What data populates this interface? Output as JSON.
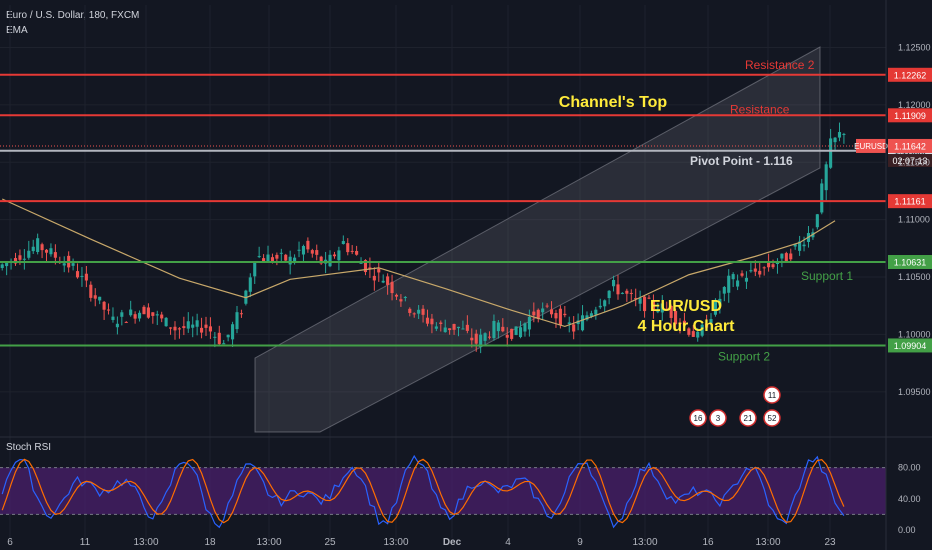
{
  "header": {
    "symbol": "Euro / U.S. Dollar, 180, FXCM",
    "indicator": "EMA"
  },
  "colors": {
    "background": "#131722",
    "up": "#26a69a",
    "down": "#ef5350",
    "resistance": "#e53935",
    "support": "#43a047",
    "pivot": "#b2b5be",
    "ema": "#c8a86a",
    "channel": "#9598a1",
    "annotation_yellow": "#ffeb3b",
    "rsi_band": "#4a1f6b"
  },
  "chart_data": {
    "type": "line",
    "title": "EUR/USD 4 Hour Chart",
    "x_tick_labels": [
      "6",
      "11",
      "13:00",
      "18",
      "13:00",
      "25",
      "13:00",
      "Dec",
      "4",
      "9",
      "13:00",
      "16",
      "13:00",
      "23"
    ],
    "y_tick_labels": [
      "1.12500",
      "1.12000",
      "1.11500",
      "1.11000",
      "1.10500",
      "1.10000",
      "1.09500"
    ],
    "ylim": [
      1.0915,
      1.1287
    ],
    "price_path": [
      [
        0,
        1.1058
      ],
      [
        9,
        1.1078
      ],
      [
        17,
        1.1058
      ],
      [
        26,
        1.1012
      ],
      [
        33,
        1.1022
      ],
      [
        40,
        1.1005
      ],
      [
        47,
        1.1007
      ],
      [
        51,
        1.0992
      ],
      [
        55,
        1.1022
      ],
      [
        58,
        1.1068
      ],
      [
        66,
        1.1065
      ],
      [
        69,
        1.1076
      ],
      [
        74,
        1.106
      ],
      [
        78,
        1.108
      ],
      [
        84,
        1.1055
      ],
      [
        87,
        1.1049
      ],
      [
        93,
        1.1023
      ],
      [
        99,
        1.1007
      ],
      [
        104,
        1.1006
      ],
      [
        108,
        1.0993
      ],
      [
        112,
        1.1006
      ],
      [
        117,
        1.1001
      ],
      [
        121,
        1.1019
      ],
      [
        125,
        1.102
      ],
      [
        130,
        1.1005
      ],
      [
        139,
        1.1042
      ],
      [
        144,
        1.1028
      ],
      [
        151,
        1.1022
      ],
      [
        158,
        1.0997
      ]
    ],
    "ema_path": [
      [
        0,
        1.1118
      ],
      [
        20,
        1.1083
      ],
      [
        40,
        1.1049
      ],
      [
        55,
        1.1032
      ],
      [
        65,
        1.1048
      ],
      [
        85,
        1.1058
      ],
      [
        100,
        1.104
      ],
      [
        115,
        1.1021
      ],
      [
        127,
        1.1007
      ],
      [
        140,
        1.1025
      ],
      [
        155,
        1.1052
      ],
      [
        170,
        1.1068
      ],
      [
        180,
        1.108
      ],
      [
        188,
        1.1099
      ]
    ],
    "levels": [
      {
        "name": "Resistance 2",
        "value": 1.12262,
        "label": "1.12262",
        "color": "#e53935"
      },
      {
        "name": "Resistance",
        "value": 1.11909,
        "label": "1.11909",
        "color": "#e53935"
      },
      {
        "name": "Pivot Point - 1.116",
        "value": 1.116,
        "label": "1.11600",
        "color": "#b2b5be"
      },
      {
        "name": "",
        "value": 1.11161,
        "label": "1.11161",
        "color": "#e53935"
      },
      {
        "name": "Support 1",
        "value": 1.10631,
        "label": "1.10631",
        "color": "#43a047"
      },
      {
        "name": "Support 2",
        "value": 1.09904,
        "label": "1.09904",
        "color": "#43a047"
      }
    ],
    "last_price": {
      "symbol": "EURUSD",
      "value": "1.11642",
      "countdown": "02:07:13"
    },
    "annotations": {
      "channel_top": "Channel's Top",
      "pair": "EUR/USD",
      "timeframe": "4 Hour Chart"
    },
    "event_badges": [
      "16",
      "3",
      "21",
      "52",
      "11"
    ],
    "stoch_rsi": {
      "title": "Stoch RSI",
      "y_tick_labels": [
        "80.00",
        "40.00",
        "0.00"
      ],
      "band": [
        20,
        80
      ]
    }
  }
}
